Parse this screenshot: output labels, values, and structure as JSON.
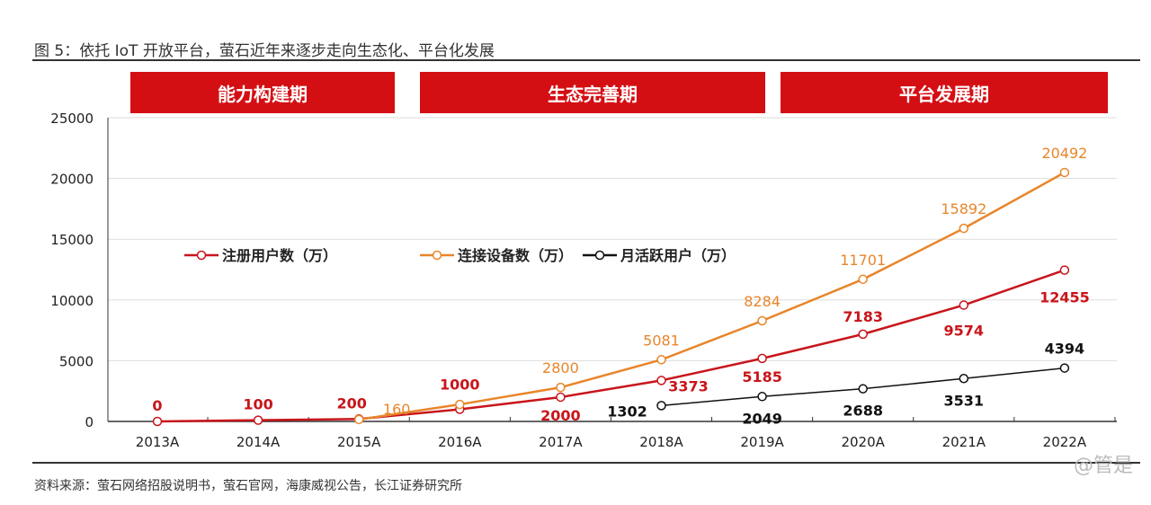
{
  "title": "图 5：依托 IoT 开放平台，萤石近年来逐步走向生态化、平台化发展",
  "phases": [
    "能力构建期",
    "生态完善期",
    "平台发展期"
  ],
  "source": "资料来源：萤石网络招股说明书，萤石官网，海康威视公告，长江证券研究所",
  "watermark": "@管是",
  "chart_data": {
    "type": "line",
    "categories": [
      "2013A",
      "2014A",
      "2015A",
      "2016A",
      "2017A",
      "2018A",
      "2019A",
      "2020A",
      "2021A",
      "2022A"
    ],
    "ylim": [
      0,
      25000
    ],
    "yticks": [
      "0",
      "5000",
      "10000",
      "15000",
      "20000",
      "25000"
    ],
    "legend_position": "center-left",
    "series": [
      {
        "name": "注册用户数（万）",
        "color": "#c8151b",
        "values": [
          0,
          100,
          200,
          1000,
          2000,
          3373,
          5185,
          7183,
          9574,
          12455
        ],
        "labels": [
          "0",
          "100",
          "200",
          "1000",
          "2000",
          "3373",
          "5185",
          "7183",
          "9574",
          "12455"
        ]
      },
      {
        "name": "连接设备数（万）",
        "color": "#e8852a",
        "values": [
          null,
          null,
          160,
          1400,
          2800,
          5081,
          8284,
          11701,
          15892,
          20492
        ],
        "labels": [
          null,
          null,
          "160",
          null,
          "2800",
          "5081",
          "8284",
          "11701",
          "15892",
          "20492"
        ]
      },
      {
        "name": "月活跃用户（万）",
        "color": "#111111",
        "values": [
          null,
          null,
          null,
          null,
          null,
          1302,
          2049,
          2688,
          3531,
          4394
        ],
        "labels": [
          null,
          null,
          null,
          null,
          null,
          "1302",
          "2049",
          "2688",
          "3531",
          "4394"
        ]
      }
    ]
  }
}
